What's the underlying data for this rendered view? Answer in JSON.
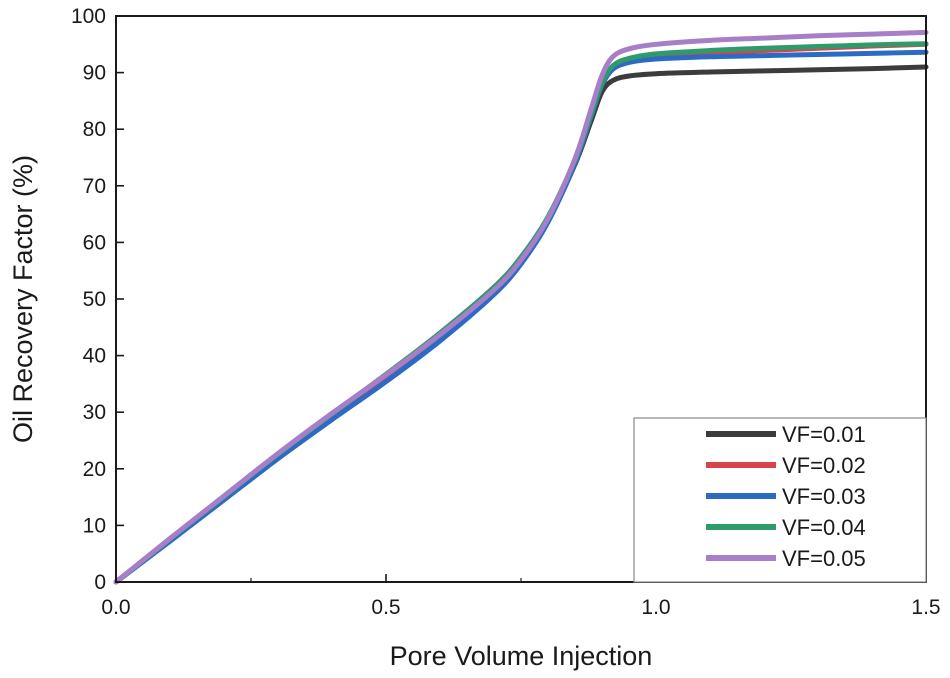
{
  "chart_data": {
    "type": "line",
    "title": "",
    "xlabel": "Pore Volume Injection",
    "ylabel": "Oil Recovery Factor  (%)",
    "xlim": [
      0,
      1.5
    ],
    "ylim": [
      0,
      100
    ],
    "xticks": [
      0.0,
      0.5,
      1.0,
      1.5
    ],
    "xtick_labels": [
      "0.0",
      "0.5",
      "1.0",
      "1.5"
    ],
    "yticks": [
      0,
      10,
      20,
      30,
      40,
      50,
      60,
      70,
      80,
      90,
      100
    ],
    "ytick_labels": [
      "0",
      "10",
      "20",
      "30",
      "40",
      "50",
      "60",
      "70",
      "80",
      "90",
      "100"
    ],
    "grid": false,
    "legend_position": "bottom-right",
    "series": [
      {
        "name": "VF=0.01",
        "color": "#3c3c3c",
        "x": [
          0,
          0.1,
          0.2,
          0.3,
          0.4,
          0.5,
          0.6,
          0.7,
          0.75,
          0.8,
          0.85,
          0.88,
          0.9,
          0.92,
          0.95,
          1.0,
          1.1,
          1.2,
          1.3,
          1.4,
          1.5
        ],
        "y": [
          0,
          7.4,
          14.8,
          22.2,
          29.1,
          35.9,
          43.1,
          51.2,
          56.5,
          63.8,
          73.8,
          81.5,
          86.6,
          88.6,
          89.4,
          89.8,
          90.1,
          90.3,
          90.5,
          90.7,
          91.0
        ]
      },
      {
        "name": "VF=0.02",
        "color": "#d9434b",
        "x": [
          0,
          0.1,
          0.2,
          0.3,
          0.4,
          0.5,
          0.6,
          0.7,
          0.75,
          0.8,
          0.85,
          0.88,
          0.9,
          0.92,
          0.95,
          1.0,
          1.1,
          1.2,
          1.3,
          1.4,
          1.5
        ],
        "y": [
          0,
          7.5,
          14.9,
          22.3,
          29.3,
          36.2,
          43.4,
          51.5,
          56.8,
          64.0,
          74.3,
          82.5,
          88.0,
          91.0,
          92.2,
          92.9,
          93.5,
          93.9,
          94.3,
          94.7,
          95.0
        ]
      },
      {
        "name": "VF=0.03",
        "color": "#2b6bc4",
        "x": [
          0,
          0.1,
          0.2,
          0.3,
          0.4,
          0.5,
          0.6,
          0.7,
          0.75,
          0.8,
          0.85,
          0.88,
          0.9,
          0.92,
          0.95,
          1.0,
          1.1,
          1.2,
          1.3,
          1.4,
          1.5
        ],
        "y": [
          0,
          7.2,
          14.5,
          21.8,
          28.7,
          35.4,
          42.6,
          50.8,
          56.2,
          63.6,
          74.0,
          82.3,
          87.8,
          90.6,
          91.8,
          92.4,
          92.8,
          93.0,
          93.2,
          93.4,
          93.6
        ]
      },
      {
        "name": "VF=0.04",
        "color": "#2f9a6a",
        "x": [
          0,
          0.1,
          0.2,
          0.3,
          0.4,
          0.5,
          0.6,
          0.7,
          0.75,
          0.8,
          0.85,
          0.88,
          0.9,
          0.92,
          0.95,
          1.0,
          1.1,
          1.2,
          1.3,
          1.4,
          1.5
        ],
        "y": [
          0,
          7.6,
          15.1,
          22.6,
          29.7,
          36.7,
          44.0,
          52.1,
          57.4,
          64.5,
          74.6,
          82.7,
          88.2,
          91.2,
          92.5,
          93.3,
          93.9,
          94.3,
          94.6,
          94.9,
          95.1
        ]
      },
      {
        "name": "VF=0.05",
        "color": "#a77fc8",
        "x": [
          0,
          0.1,
          0.2,
          0.3,
          0.4,
          0.5,
          0.6,
          0.7,
          0.75,
          0.8,
          0.85,
          0.88,
          0.9,
          0.92,
          0.95,
          1.0,
          1.1,
          1.2,
          1.3,
          1.4,
          1.5
        ],
        "y": [
          0,
          7.7,
          15.2,
          22.7,
          29.8,
          36.6,
          43.7,
          51.6,
          56.9,
          64.2,
          74.8,
          83.6,
          89.5,
          92.8,
          94.2,
          95.0,
          95.7,
          96.1,
          96.5,
          96.8,
          97.1
        ]
      }
    ]
  }
}
